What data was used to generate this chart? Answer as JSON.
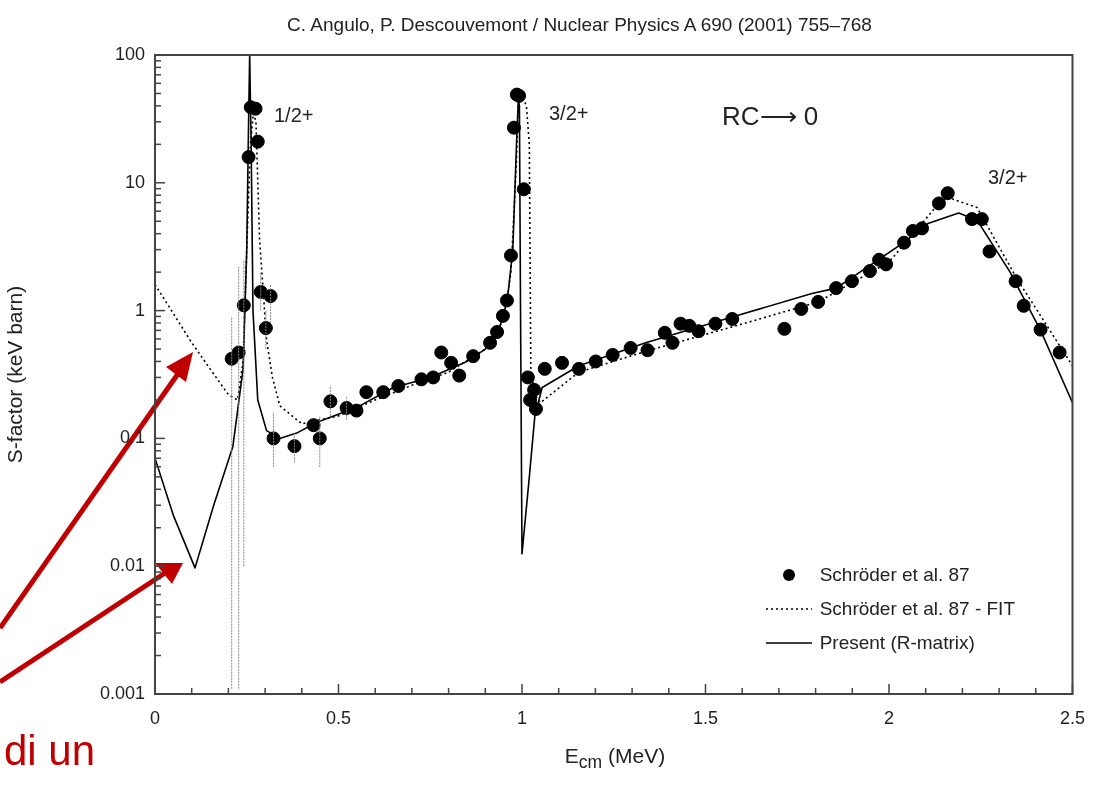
{
  "chart_data": {
    "type": "scatter",
    "title": "C. Angulo, P. Descouvemont / Nuclear Physics A 690 (2001) 755–768",
    "xlabel": "E$_{cm}$ (MeV)",
    "ylabel": "S-factor (keV barn)",
    "log": "y",
    "grid": false,
    "legend": "bottom right",
    "xlim": [
      0,
      2.5
    ],
    "xticks": [
      0,
      {
        "value": 0.1,
        "label": null
      },
      {
        "value": 0.2,
        "label": null
      },
      {
        "value": 0.3,
        "label": null
      },
      {
        "value": 0.4,
        "label": null
      },
      0.5,
      {
        "value": 0.6,
        "label": null
      },
      {
        "value": 0.7,
        "label": null
      },
      {
        "value": 0.8,
        "label": null
      },
      {
        "value": 0.9,
        "label": null
      },
      1,
      {
        "value": 1.1,
        "label": null
      },
      {
        "value": 1.2,
        "label": null
      },
      {
        "value": 1.3,
        "label": null
      },
      {
        "value": 1.4,
        "label": null
      },
      1.5,
      {
        "value": 1.6,
        "label": null
      },
      {
        "value": 1.7,
        "label": null
      },
      {
        "value": 1.8,
        "label": null
      },
      {
        "value": 1.9,
        "label": null
      },
      2,
      {
        "value": 2.1,
        "label": null
      },
      {
        "value": 2.2,
        "label": null
      },
      {
        "value": 2.3,
        "label": null
      },
      {
        "value": 2.4,
        "label": null
      },
      2.5
    ],
    "ylim": [
      0.001,
      100
    ],
    "yticks": [
      0.001,
      {
        "value": 0.002,
        "label": null
      },
      {
        "value": 0.003,
        "label": null
      },
      {
        "value": 0.004,
        "label": null
      },
      {
        "value": 0.005,
        "label": null
      },
      {
        "value": 0.006,
        "label": null
      },
      {
        "value": 0.007,
        "label": null
      },
      {
        "value": 0.008,
        "label": null
      },
      {
        "value": 0.009,
        "label": null
      },
      0.01,
      {
        "value": 0.02,
        "label": null
      },
      {
        "value": 0.03,
        "label": null
      },
      {
        "value": 0.04,
        "label": null
      },
      {
        "value": 0.05,
        "label": null
      },
      {
        "value": 0.06,
        "label": null
      },
      {
        "value": 0.07,
        "label": null
      },
      {
        "value": 0.08,
        "label": null
      },
      {
        "value": 0.09,
        "label": null
      },
      0.1,
      {
        "value": 0.2,
        "label": null
      },
      {
        "value": 0.3,
        "label": null
      },
      {
        "value": 0.4,
        "label": null
      },
      {
        "value": 0.5,
        "label": null
      },
      {
        "value": 0.6,
        "label": null
      },
      {
        "value": 0.7,
        "label": null
      },
      {
        "value": 0.8,
        "label": null
      },
      {
        "value": 0.9,
        "label": null
      },
      1,
      {
        "value": 2,
        "label": null
      },
      {
        "value": 3,
        "label": null
      },
      {
        "value": 4,
        "label": null
      },
      {
        "value": 5,
        "label": null
      },
      {
        "value": 6,
        "label": null
      },
      {
        "value": 7,
        "label": null
      },
      {
        "value": 8,
        "label": null
      },
      {
        "value": 9,
        "label": null
      },
      10,
      {
        "value": 20,
        "label": null
      },
      {
        "value": 30,
        "label": null
      },
      {
        "value": 40,
        "label": null
      },
      {
        "value": 50,
        "label": null
      },
      {
        "value": 60,
        "label": null
      },
      {
        "value": 70,
        "label": null
      },
      {
        "value": 80,
        "label": null
      },
      {
        "value": 90,
        "label": null
      },
      100
    ],
    "annotations": [
      "1/2+",
      "3/2+",
      "3/2+",
      "RC⟶ 0",
      "di un"
    ],
    "series": [
      {
        "name": "Schröder et al. 87",
        "type": "scatter",
        "marker": "circle",
        "color": "#000000",
        "x": [
          0.209,
          0.228,
          0.242,
          0.255,
          0.261,
          0.274,
          0.28,
          0.288,
          0.302,
          0.315,
          0.323,
          0.38,
          0.432,
          0.449,
          0.478,
          0.522,
          0.549,
          0.576,
          0.622,
          0.663,
          0.726,
          0.758,
          0.78,
          0.807,
          0.829,
          0.867,
          0.913,
          0.932,
          0.948,
          0.959,
          0.97,
          0.978,
          0.986,
          0.992,
          1.005,
          1.016,
          1.022,
          1.033,
          1.038,
          1.062,
          1.109,
          1.155,
          1.201,
          1.247,
          1.296,
          1.342,
          1.389,
          1.41,
          1.432,
          1.456,
          1.481,
          1.527,
          1.573,
          1.715,
          1.761,
          1.807,
          1.856,
          1.899,
          1.948,
          1.973,
          1.992,
          2.041,
          2.065,
          2.09,
          2.136,
          2.16,
          2.226,
          2.253,
          2.274,
          2.345,
          2.367,
          2.413,
          2.465
        ],
        "values": [
          0.42,
          0.47,
          1.1,
          15.9,
          39,
          38,
          21,
          1.4,
          0.73,
          1.3,
          0.1,
          0.087,
          0.127,
          0.1,
          0.195,
          0.173,
          0.165,
          0.23,
          0.23,
          0.257,
          0.29,
          0.3,
          0.47,
          0.39,
          0.31,
          0.44,
          0.56,
          0.68,
          0.91,
          1.2,
          2.7,
          27,
          49,
          48,
          8.9,
          0.3,
          0.2,
          0.24,
          0.17,
          0.35,
          0.39,
          0.35,
          0.4,
          0.45,
          0.51,
          0.49,
          0.67,
          0.56,
          0.79,
          0.76,
          0.69,
          0.79,
          0.86,
          0.72,
          1.03,
          1.17,
          1.5,
          1.7,
          2.04,
          2.5,
          2.3,
          3.4,
          4.2,
          4.4,
          6.9,
          8.3,
          5.2,
          5.2,
          2.9,
          1.7,
          1.09,
          0.71,
          0.47
        ],
        "errors": [
          [
            0.0011,
            0.9
          ],
          [
            0.0011,
            2.2
          ],
          [
            0.01,
            2.5
          ],
          null,
          null,
          null,
          null,
          [
            1.0,
            2.0
          ],
          [
            0.5,
            1.0
          ],
          [
            0.8,
            1.6
          ],
          [
            0.06,
            0.16
          ],
          [
            0.065,
            0.11
          ],
          null,
          [
            0.06,
            0.15
          ],
          [
            0.15,
            0.26
          ],
          [
            0.14,
            0.21
          ],
          null,
          null,
          null,
          null,
          null,
          null,
          null,
          null,
          null,
          null,
          null,
          null,
          null,
          null,
          null,
          null,
          null,
          null,
          null,
          null,
          null,
          null,
          null,
          null,
          null,
          null,
          null,
          null,
          null,
          null,
          null,
          null,
          null,
          null,
          null,
          null,
          null,
          null,
          null,
          null,
          null,
          null,
          null,
          null,
          null,
          null,
          null,
          null,
          null,
          null,
          null,
          null,
          null,
          null,
          null,
          null,
          null
        ]
      },
      {
        "name": "Schröder et al. 87 - FIT",
        "type": "line",
        "marker": "none",
        "line_style": "dotted",
        "color": "#000000",
        "x": [
          0,
          0.05,
          0.095,
          0.15,
          0.2,
          0.225,
          0.24,
          0.25,
          0.26,
          0.268,
          0.275,
          0.285,
          0.304,
          0.32,
          0.34,
          0.4,
          0.5,
          0.6,
          0.7,
          0.8,
          0.9,
          0.95,
          0.97,
          0.985,
          0.99,
          1.0,
          1.012,
          1.02,
          1.024,
          1.035,
          1.05,
          1.155,
          1.337,
          1.61,
          1.807,
          2.0,
          2.136,
          2.16,
          2.24,
          2.35,
          2.5
        ],
        "values": [
          1.6,
          0.95,
          0.59,
          0.35,
          0.22,
          0.2,
          0.4,
          3,
          20,
          35,
          30,
          3.6,
          0.59,
          0.3,
          0.18,
          0.13,
          0.15,
          0.2,
          0.26,
          0.33,
          0.5,
          0.85,
          2,
          15,
          40,
          48,
          40,
          20,
          0.36,
          0.22,
          0.19,
          0.33,
          0.48,
          0.8,
          1.17,
          2.4,
          6.9,
          7.7,
          6.4,
          1.75,
          0.37
        ]
      },
      {
        "name": "Present (R-matrix)",
        "type": "line",
        "marker": "none",
        "line_style": "solid",
        "color": "#000000",
        "x": [
          0,
          0.05,
          0.109,
          0.16,
          0.212,
          0.24,
          0.25,
          0.255,
          0.258,
          0.262,
          0.267,
          0.28,
          0.304,
          0.34,
          0.386,
          0.44,
          0.55,
          0.65,
          0.75,
          0.85,
          0.9,
          0.94,
          0.96,
          0.975,
          0.985,
          0.99,
          0.993,
          0.996,
          1.0,
          1.02,
          1.035,
          1.055,
          1.155,
          1.337,
          1.573,
          1.79,
          1.856,
          2.04,
          2.106,
          2.19,
          2.24,
          2.33,
          2.413,
          2.5
        ],
        "values": [
          0.07,
          0.025,
          0.0097,
          0.03,
          0.086,
          0.35,
          3,
          30,
          100,
          20,
          1,
          0.2,
          0.115,
          0.1,
          0.11,
          0.133,
          0.175,
          0.25,
          0.3,
          0.4,
          0.5,
          0.75,
          1.2,
          3,
          20,
          45,
          40,
          1,
          0.0125,
          0.05,
          0.15,
          0.25,
          0.37,
          0.56,
          0.89,
          1.36,
          1.5,
          3.4,
          4.8,
          5.8,
          5.1,
          2.0,
          0.7,
          0.19
        ]
      }
    ]
  }
}
